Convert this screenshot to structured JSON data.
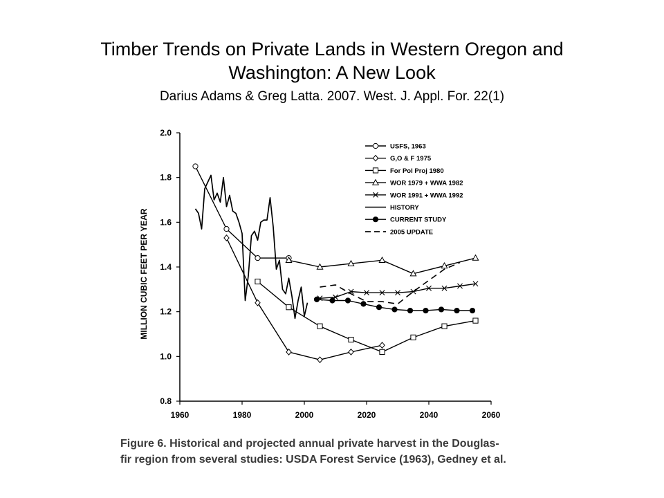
{
  "slide": {
    "title_line1": "Timber Trends on Private Lands in Western Oregon and",
    "title_line2": "Washington: A New Look",
    "citation": "Darius Adams & Greg Latta. 2007. West. J. Appl. For. 22(1)"
  },
  "caption": {
    "line1": "Figure 6.   Historical and projected annual private harvest in the Douglas-",
    "line2": "fir region from several studies: USDA Forest Service (1963), Gedney et al."
  },
  "chart_data": {
    "type": "line",
    "ylabel": "MILLION CUBIC FEET PER YEAR",
    "xlabel": "",
    "xlim": [
      1960,
      2060
    ],
    "ylim": [
      0.8,
      2.0
    ],
    "x_ticks": [
      "1960",
      "1980",
      "2000",
      "2020",
      "2040",
      "2060"
    ],
    "y_ticks": [
      "0.8",
      "1.0",
      "1.2",
      "1.4",
      "1.6",
      "1.8",
      "2.0"
    ],
    "legend_position": "top-right",
    "grid": false,
    "series": [
      {
        "name": "USFS, 1963",
        "marker": "circle-open",
        "style": "solid",
        "points": [
          [
            1965,
            1.85
          ],
          [
            1975,
            1.57
          ],
          [
            1985,
            1.44
          ],
          [
            1995,
            1.44
          ]
        ]
      },
      {
        "name": "G,O & F 1975",
        "marker": "diamond-open",
        "style": "solid",
        "points": [
          [
            1975,
            1.53
          ],
          [
            1985,
            1.24
          ],
          [
            1995,
            1.02
          ],
          [
            2005,
            0.985
          ],
          [
            2015,
            1.02
          ],
          [
            2025,
            1.05
          ]
        ]
      },
      {
        "name": "For Pol Proj 1980",
        "marker": "square-open",
        "style": "solid",
        "points": [
          [
            1985,
            1.335
          ],
          [
            1995,
            1.22
          ],
          [
            2005,
            1.135
          ],
          [
            2015,
            1.075
          ],
          [
            2025,
            1.02
          ],
          [
            2035,
            1.085
          ],
          [
            2045,
            1.135
          ],
          [
            2055,
            1.16
          ]
        ]
      },
      {
        "name": "WOR 1979 + WWA 1982",
        "marker": "triangle-open",
        "style": "solid",
        "points": [
          [
            1995,
            1.43
          ],
          [
            2005,
            1.4
          ],
          [
            2015,
            1.415
          ],
          [
            2025,
            1.43
          ],
          [
            2035,
            1.37
          ],
          [
            2045,
            1.405
          ],
          [
            2055,
            1.44
          ]
        ]
      },
      {
        "name": "WOR 1991 + WWA 1992",
        "marker": "x",
        "style": "solid",
        "points": [
          [
            2005,
            1.26
          ],
          [
            2010,
            1.265
          ],
          [
            2015,
            1.29
          ],
          [
            2020,
            1.285
          ],
          [
            2025,
            1.285
          ],
          [
            2030,
            1.285
          ],
          [
            2035,
            1.29
          ],
          [
            2040,
            1.305
          ],
          [
            2045,
            1.305
          ],
          [
            2050,
            1.315
          ],
          [
            2055,
            1.325
          ]
        ]
      },
      {
        "name": "HISTORY",
        "marker": "none",
        "style": "solid",
        "points": [
          [
            1965,
            1.66
          ],
          [
            1966,
            1.64
          ],
          [
            1967,
            1.57
          ],
          [
            1968,
            1.75
          ],
          [
            1969,
            1.78
          ],
          [
            1970,
            1.81
          ],
          [
            1971,
            1.7
          ],
          [
            1972,
            1.73
          ],
          [
            1973,
            1.69
          ],
          [
            1974,
            1.8
          ],
          [
            1975,
            1.67
          ],
          [
            1976,
            1.72
          ],
          [
            1977,
            1.65
          ],
          [
            1978,
            1.64
          ],
          [
            1979,
            1.6
          ],
          [
            1980,
            1.55
          ],
          [
            1981,
            1.25
          ],
          [
            1982,
            1.36
          ],
          [
            1983,
            1.54
          ],
          [
            1984,
            1.56
          ],
          [
            1985,
            1.52
          ],
          [
            1986,
            1.6
          ],
          [
            1987,
            1.61
          ],
          [
            1988,
            1.61
          ],
          [
            1989,
            1.71
          ],
          [
            1990,
            1.58
          ],
          [
            1991,
            1.39
          ],
          [
            1992,
            1.43
          ],
          [
            1993,
            1.3
          ],
          [
            1994,
            1.28
          ],
          [
            1995,
            1.35
          ],
          [
            1996,
            1.27
          ],
          [
            1997,
            1.17
          ],
          [
            1998,
            1.25
          ],
          [
            1999,
            1.31
          ],
          [
            2000,
            1.18
          ],
          [
            2001,
            1.24
          ]
        ]
      },
      {
        "name": "CURRENT STUDY",
        "marker": "circle-filled",
        "style": "solid",
        "points": [
          [
            2004,
            1.255
          ],
          [
            2009,
            1.25
          ],
          [
            2014,
            1.25
          ],
          [
            2019,
            1.235
          ],
          [
            2024,
            1.22
          ],
          [
            2029,
            1.21
          ],
          [
            2034,
            1.205
          ],
          [
            2039,
            1.205
          ],
          [
            2044,
            1.21
          ],
          [
            2049,
            1.205
          ],
          [
            2054,
            1.205
          ]
        ]
      },
      {
        "name": "2005 UPDATE",
        "marker": "none",
        "style": "dashed",
        "points": [
          [
            2005,
            1.31
          ],
          [
            2010,
            1.32
          ],
          [
            2015,
            1.28
          ],
          [
            2020,
            1.245
          ],
          [
            2025,
            1.245
          ],
          [
            2030,
            1.235
          ],
          [
            2035,
            1.29
          ],
          [
            2040,
            1.34
          ],
          [
            2045,
            1.39
          ],
          [
            2050,
            1.42
          ]
        ]
      }
    ]
  }
}
